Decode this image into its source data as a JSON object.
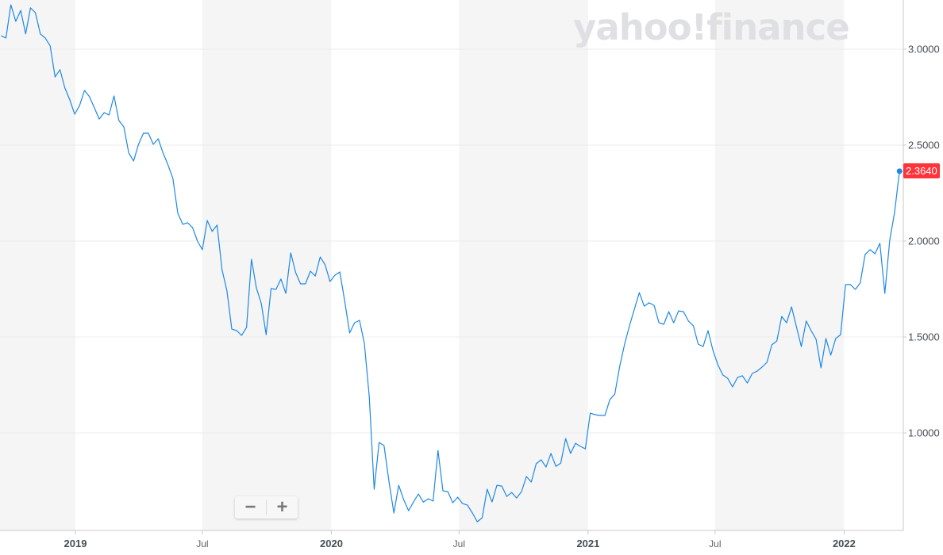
{
  "logo": {
    "text": "yahoo!finance"
  },
  "zoom_controls": {
    "zoom_out": "−",
    "zoom_in": "+"
  },
  "colors": {
    "line": "#1e88e5",
    "band": "#f5f5f5",
    "price_tag": "#ff333a",
    "grid": "#ececec"
  },
  "chart_data": {
    "type": "line",
    "title": "",
    "xlabel": "",
    "ylabel": "",
    "ylim": [
      0.492,
      3.256
    ],
    "y_axis_position": "right",
    "grid": true,
    "y_ticks": [
      {
        "value": 1.0,
        "label": "1.0000"
      },
      {
        "value": 1.5,
        "label": "1.5000"
      },
      {
        "value": 2.0,
        "label": "2.0000"
      },
      {
        "value": 2.5,
        "label": "2.5000"
      },
      {
        "value": 3.0,
        "label": "3.0000"
      }
    ],
    "x_ticks": [
      {
        "date": "2019-01-01",
        "label": "2019",
        "bold": true
      },
      {
        "date": "2019-07-01",
        "label": "Jul",
        "bold": false
      },
      {
        "date": "2020-01-01",
        "label": "2020",
        "bold": true
      },
      {
        "date": "2020-07-01",
        "label": "Jul",
        "bold": false
      },
      {
        "date": "2021-01-01",
        "label": "2021",
        "bold": true
      },
      {
        "date": "2021-07-01",
        "label": "Jul",
        "bold": false
      },
      {
        "date": "2022-01-01",
        "label": "2022",
        "bold": true
      }
    ],
    "last_value_label": "2.3640",
    "x": [
      "2018-09-17",
      "2018-09-24",
      "2018-10-01",
      "2018-10-08",
      "2018-10-15",
      "2018-10-22",
      "2018-10-29",
      "2018-11-05",
      "2018-11-12",
      "2018-11-19",
      "2018-11-26",
      "2018-12-03",
      "2018-12-10",
      "2018-12-17",
      "2018-12-24",
      "2018-12-31",
      "2019-01-07",
      "2019-01-14",
      "2019-01-21",
      "2019-01-28",
      "2019-02-04",
      "2019-02-11",
      "2019-02-18",
      "2019-02-25",
      "2019-03-04",
      "2019-03-11",
      "2019-03-18",
      "2019-03-25",
      "2019-04-01",
      "2019-04-08",
      "2019-04-15",
      "2019-04-22",
      "2019-04-29",
      "2019-05-06",
      "2019-05-13",
      "2019-05-20",
      "2019-05-27",
      "2019-06-03",
      "2019-06-10",
      "2019-06-17",
      "2019-06-24",
      "2019-07-01",
      "2019-07-08",
      "2019-07-15",
      "2019-07-22",
      "2019-07-29",
      "2019-08-05",
      "2019-08-12",
      "2019-08-19",
      "2019-08-26",
      "2019-09-02",
      "2019-09-09",
      "2019-09-16",
      "2019-09-23",
      "2019-09-30",
      "2019-10-07",
      "2019-10-14",
      "2019-10-21",
      "2019-10-28",
      "2019-11-04",
      "2019-11-11",
      "2019-11-18",
      "2019-11-25",
      "2019-12-02",
      "2019-12-09",
      "2019-12-16",
      "2019-12-23",
      "2019-12-30",
      "2020-01-06",
      "2020-01-13",
      "2020-01-20",
      "2020-01-27",
      "2020-02-03",
      "2020-02-10",
      "2020-02-17",
      "2020-02-24",
      "2020-03-02",
      "2020-03-09",
      "2020-03-16",
      "2020-03-23",
      "2020-03-30",
      "2020-04-06",
      "2020-04-13",
      "2020-04-20",
      "2020-04-27",
      "2020-05-04",
      "2020-05-11",
      "2020-05-18",
      "2020-05-25",
      "2020-06-01",
      "2020-06-08",
      "2020-06-15",
      "2020-06-22",
      "2020-06-29",
      "2020-07-06",
      "2020-07-13",
      "2020-07-20",
      "2020-07-27",
      "2020-08-03",
      "2020-08-10",
      "2020-08-17",
      "2020-08-24",
      "2020-08-31",
      "2020-09-07",
      "2020-09-14",
      "2020-09-21",
      "2020-09-28",
      "2020-10-05",
      "2020-10-12",
      "2020-10-19",
      "2020-10-26",
      "2020-11-02",
      "2020-11-09",
      "2020-11-16",
      "2020-11-23",
      "2020-11-30",
      "2020-12-07",
      "2020-12-14",
      "2020-12-21",
      "2020-12-28",
      "2021-01-04",
      "2021-01-11",
      "2021-01-18",
      "2021-01-25",
      "2021-02-01",
      "2021-02-08",
      "2021-02-15",
      "2021-02-22",
      "2021-03-01",
      "2021-03-08",
      "2021-03-15",
      "2021-03-22",
      "2021-03-29",
      "2021-04-05",
      "2021-04-12",
      "2021-04-19",
      "2021-04-26",
      "2021-05-03",
      "2021-05-10",
      "2021-05-17",
      "2021-05-24",
      "2021-05-31",
      "2021-06-07",
      "2021-06-14",
      "2021-06-21",
      "2021-06-28",
      "2021-07-05",
      "2021-07-12",
      "2021-07-19",
      "2021-07-26",
      "2021-08-02",
      "2021-08-09",
      "2021-08-16",
      "2021-08-23",
      "2021-08-30",
      "2021-09-06",
      "2021-09-13",
      "2021-09-20",
      "2021-09-27",
      "2021-10-04",
      "2021-10-11",
      "2021-10-18",
      "2021-10-25",
      "2021-11-01",
      "2021-11-08",
      "2021-11-15",
      "2021-11-22",
      "2021-11-29",
      "2021-12-06",
      "2021-12-13",
      "2021-12-20",
      "2021-12-27",
      "2022-01-03",
      "2022-01-10",
      "2022-01-17",
      "2022-01-24",
      "2022-01-31",
      "2022-02-07",
      "2022-02-14",
      "2022-02-21",
      "2022-02-28",
      "2022-03-07",
      "2022-03-14",
      "2022-03-21"
    ],
    "series": [
      {
        "values": [
          3.07,
          3.058,
          3.231,
          3.145,
          3.202,
          3.079,
          3.215,
          3.19,
          3.079,
          3.058,
          3.017,
          2.855,
          2.893,
          2.798,
          2.736,
          2.661,
          2.707,
          2.785,
          2.752,
          2.694,
          2.636,
          2.669,
          2.657,
          2.756,
          2.628,
          2.595,
          2.459,
          2.417,
          2.504,
          2.562,
          2.562,
          2.504,
          2.533,
          2.459,
          2.397,
          2.326,
          2.145,
          2.087,
          2.095,
          2.07,
          2.0,
          1.955,
          2.107,
          2.05,
          2.083,
          1.851,
          1.74,
          1.541,
          1.533,
          1.508,
          1.55,
          1.905,
          1.756,
          1.674,
          1.512,
          1.752,
          1.748,
          1.802,
          1.727,
          1.938,
          1.835,
          1.777,
          1.777,
          1.843,
          1.818,
          1.917,
          1.876,
          1.789,
          1.822,
          1.839,
          1.686,
          1.521,
          1.574,
          1.587,
          1.467,
          1.19,
          0.707,
          0.95,
          0.934,
          0.748,
          0.583,
          0.727,
          0.653,
          0.595,
          0.64,
          0.682,
          0.64,
          0.657,
          0.645,
          0.909,
          0.698,
          0.694,
          0.636,
          0.665,
          0.632,
          0.624,
          0.583,
          0.537,
          0.558,
          0.707,
          0.64,
          0.727,
          0.723,
          0.669,
          0.69,
          0.661,
          0.694,
          0.773,
          0.744,
          0.839,
          0.86,
          0.822,
          0.893,
          0.826,
          0.843,
          0.971,
          0.893,
          0.946,
          0.93,
          0.917,
          1.103,
          1.095,
          1.091,
          1.091,
          1.174,
          1.202,
          1.347,
          1.463,
          1.558,
          1.645,
          1.731,
          1.661,
          1.678,
          1.665,
          1.574,
          1.566,
          1.632,
          1.574,
          1.636,
          1.632,
          1.583,
          1.558,
          1.463,
          1.45,
          1.533,
          1.43,
          1.355,
          1.302,
          1.285,
          1.24,
          1.289,
          1.298,
          1.26,
          1.31,
          1.322,
          1.343,
          1.368,
          1.459,
          1.479,
          1.607,
          1.574,
          1.657,
          1.554,
          1.45,
          1.583,
          1.533,
          1.488,
          1.339,
          1.492,
          1.405,
          1.492,
          1.512,
          1.773,
          1.773,
          1.748,
          1.781,
          1.93,
          1.955,
          1.934,
          1.988,
          1.727,
          2.004,
          2.149,
          2.364
        ]
      }
    ]
  }
}
